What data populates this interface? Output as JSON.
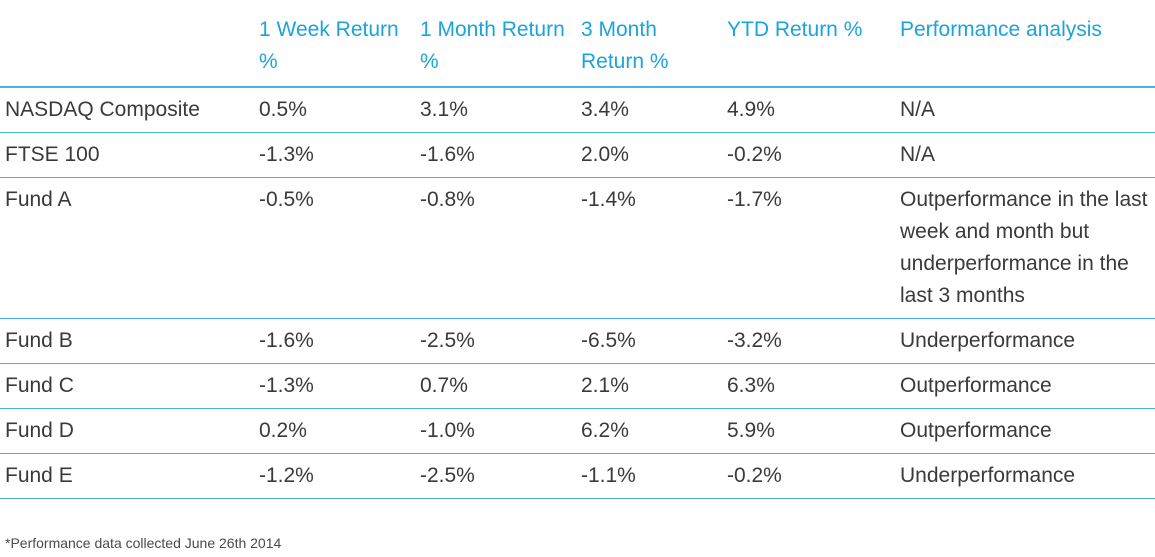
{
  "chart_data": {
    "type": "table",
    "columns": [
      "",
      "1 Week Return %",
      "1 Month Return %",
      "3 Month Return %",
      "YTD Return %",
      "Performance analysis"
    ],
    "rows": [
      [
        "NASDAQ Composite",
        "0.5%",
        "3.1%",
        "3.4%",
        "4.9%",
        "N/A"
      ],
      [
        "FTSE 100",
        "-1.3%",
        "-1.6%",
        "2.0%",
        "-0.2%",
        "N/A"
      ],
      [
        "Fund A",
        "-0.5%",
        "-0.8%",
        "-1.4%",
        "-1.7%",
        "Outperformance in the last week and month but underperformance in the last 3 months"
      ],
      [
        "Fund B",
        "-1.6%",
        "-2.5%",
        "-6.5%",
        "-3.2%",
        "Underperformance"
      ],
      [
        "Fund C",
        "-1.3%",
        "0.7%",
        "2.1%",
        "6.3%",
        "Outperformance"
      ],
      [
        "Fund D",
        "0.2%",
        "-1.0%",
        "6.2%",
        "5.9%",
        "Outperformance"
      ],
      [
        "Fund E",
        "-1.2%",
        "-2.5%",
        "-1.1%",
        "-0.2%",
        "Underperformance"
      ]
    ],
    "footnote": "*Performance data collected June 26th 2014"
  },
  "colors": {
    "header_text": "#1ba3dc",
    "rule": "#48b3e1",
    "body_text": "#3a3a3a"
  }
}
